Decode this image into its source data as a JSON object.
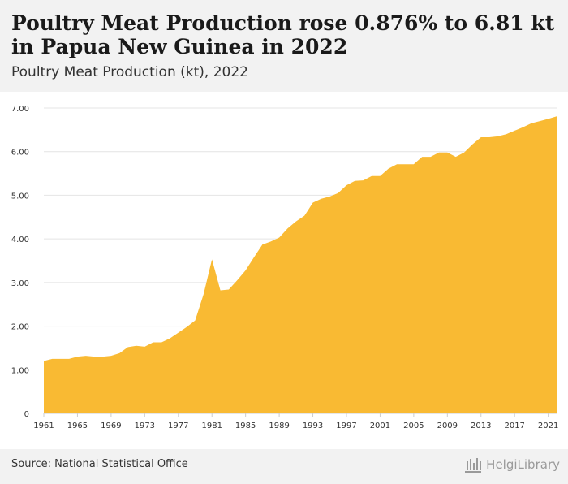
{
  "header": {
    "title": "Poultry Meat Production rose 0.876% to 6.81 kt in Papua New Guinea in 2022",
    "subtitle": "Poultry Meat Production (kt), 2022"
  },
  "footer": {
    "source": "Source: National Statistical Office",
    "brand": "HelgiLibrary"
  },
  "colors": {
    "area": "#f9ba33",
    "grid": "#e4e4e4",
    "axis_text": "#333333"
  },
  "chart_data": {
    "type": "area",
    "title": "Poultry Meat Production rose 0.876% to 6.81 kt in Papua New Guinea in 2022",
    "subtitle": "Poultry Meat Production (kt), 2022",
    "xlabel": "",
    "ylabel": "",
    "x": [
      1961,
      1962,
      1963,
      1964,
      1965,
      1966,
      1967,
      1968,
      1969,
      1970,
      1971,
      1972,
      1973,
      1974,
      1975,
      1976,
      1977,
      1978,
      1979,
      1980,
      1981,
      1982,
      1983,
      1984,
      1985,
      1986,
      1987,
      1988,
      1989,
      1990,
      1991,
      1992,
      1993,
      1994,
      1995,
      1996,
      1997,
      1998,
      1999,
      2000,
      2001,
      2002,
      2003,
      2004,
      2005,
      2006,
      2007,
      2008,
      2009,
      2010,
      2011,
      2012,
      2013,
      2014,
      2015,
      2016,
      2017,
      2018,
      2019,
      2020,
      2021,
      2022
    ],
    "series": [
      {
        "values": [
          1.2,
          1.25,
          1.25,
          1.25,
          1.3,
          1.32,
          1.3,
          1.3,
          1.32,
          1.38,
          1.52,
          1.55,
          1.53,
          1.63,
          1.63,
          1.72,
          1.85,
          1.98,
          2.13,
          2.73,
          3.53,
          2.82,
          2.84,
          3.05,
          3.28,
          3.58,
          3.87,
          3.94,
          4.03,
          4.24,
          4.4,
          4.53,
          4.83,
          4.92,
          4.97,
          5.05,
          5.23,
          5.33,
          5.34,
          5.44,
          5.44,
          5.61,
          5.71,
          5.71,
          5.71,
          5.88,
          5.88,
          5.98,
          5.98,
          5.88,
          5.98,
          6.17,
          6.33,
          6.33,
          6.35,
          6.4,
          6.48,
          6.56,
          6.65,
          6.7,
          6.75,
          6.81
        ]
      }
    ],
    "xticks": [
      1961,
      1965,
      1969,
      1973,
      1977,
      1981,
      1985,
      1989,
      1993,
      1997,
      2001,
      2005,
      2009,
      2013,
      2017,
      2021
    ],
    "yticks": [
      0,
      1,
      2,
      3,
      4,
      5,
      6,
      7
    ],
    "ytick_labels": [
      "0",
      "1.00",
      "2.00",
      "3.00",
      "4.00",
      "5.00",
      "6.00",
      "7.00"
    ],
    "xlim": [
      1961,
      2022
    ],
    "ylim": [
      0,
      7
    ],
    "grid": true,
    "legend": "none"
  }
}
